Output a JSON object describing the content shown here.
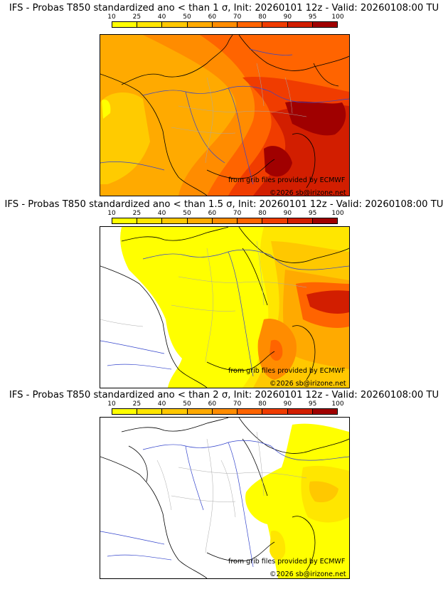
{
  "colorbar": {
    "ticks": [
      "10",
      "25",
      "40",
      "50",
      "60",
      "70",
      "80",
      "90",
      "95",
      "100"
    ],
    "colors": [
      "#ffff00",
      "#ffe600",
      "#ffc800",
      "#ffaa00",
      "#ff8c00",
      "#ff6400",
      "#f03c00",
      "#d21e00",
      "#a00000"
    ]
  },
  "panels": [
    {
      "title": "IFS - Probas T850  standardized ano < than 1 σ, Init: 20260101 12z - Valid: 20260108:00 TU",
      "credit": "from grib files provided by ECMWF",
      "copyright": "©2026 sb@irizone.net"
    },
    {
      "title": "IFS - Probas T850  standardized ano < than 1.5 σ, Init: 20260101 12z - Valid: 20260108:00 TU",
      "credit": "from grib files provided by ECMWF",
      "copyright": "©2026 sb@irizone.net"
    },
    {
      "title": "IFS - Probas T850  standardized ano < than 2 σ, Init: 20260101 12z - Valid: 20260108:00 TU",
      "credit": "from grib files provided by ECMWF",
      "copyright": "©2026 sb@irizone.net"
    }
  ]
}
